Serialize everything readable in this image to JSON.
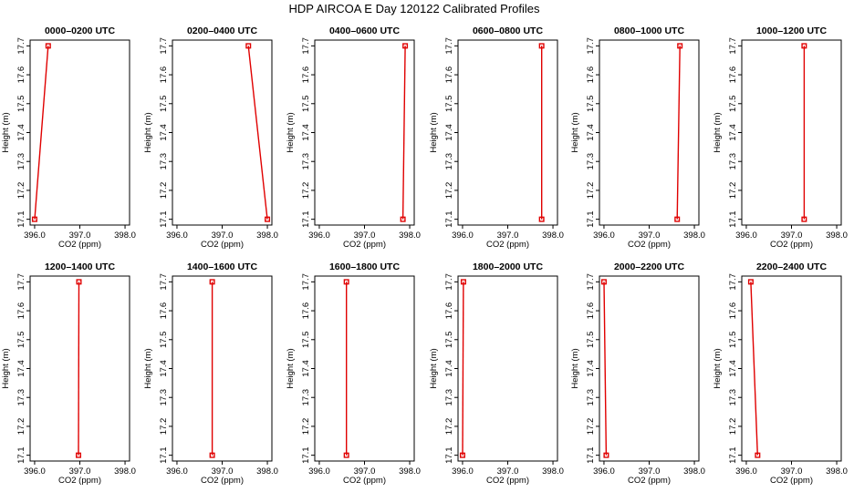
{
  "figure": {
    "title": "HDP AIRCOA E  Day 120122  Calibrated Profiles"
  },
  "axes": {
    "xlabel": "CO2 (ppm)",
    "ylabel": "Height (m)",
    "xticks": [
      "396.0",
      "397.0",
      "398.0"
    ],
    "yticks": [
      "17.1",
      "17.2",
      "17.3",
      "17.4",
      "17.5",
      "17.6",
      "17.7"
    ]
  },
  "colors": {
    "series": "#e00000",
    "axis": "#000000"
  },
  "chart_data": [
    {
      "type": "line",
      "title": "0000–0200 UTC",
      "xlabel": "CO2 (ppm)",
      "ylabel": "Height (m)",
      "xlim": [
        395.9,
        398.1
      ],
      "ylim": [
        17.08,
        17.72
      ],
      "points": [
        {
          "x": 396.3,
          "y": 17.7
        },
        {
          "x": 396.0,
          "y": 17.1
        }
      ]
    },
    {
      "type": "line",
      "title": "0200–0400 UTC",
      "xlabel": "CO2 (ppm)",
      "ylabel": "Height (m)",
      "xlim": [
        395.9,
        398.1
      ],
      "ylim": [
        17.08,
        17.72
      ],
      "points": [
        {
          "x": 397.58,
          "y": 17.7
        },
        {
          "x": 398.0,
          "y": 17.1
        }
      ]
    },
    {
      "type": "line",
      "title": "0400–0600 UTC",
      "xlabel": "CO2 (ppm)",
      "ylabel": "Height (m)",
      "xlim": [
        395.9,
        398.1
      ],
      "ylim": [
        17.08,
        17.72
      ],
      "points": [
        {
          "x": 397.9,
          "y": 17.7
        },
        {
          "x": 397.85,
          "y": 17.1
        }
      ]
    },
    {
      "type": "line",
      "title": "0600–0800 UTC",
      "xlabel": "CO2 (ppm)",
      "ylabel": "Height (m)",
      "xlim": [
        395.9,
        398.1
      ],
      "ylim": [
        17.08,
        17.72
      ],
      "points": [
        {
          "x": 397.75,
          "y": 17.7
        },
        {
          "x": 397.75,
          "y": 17.1
        }
      ]
    },
    {
      "type": "line",
      "title": "0800–1000 UTC",
      "xlabel": "CO2 (ppm)",
      "ylabel": "Height (m)",
      "xlim": [
        395.9,
        398.1
      ],
      "ylim": [
        17.08,
        17.72
      ],
      "points": [
        {
          "x": 397.68,
          "y": 17.7
        },
        {
          "x": 397.62,
          "y": 17.1
        }
      ]
    },
    {
      "type": "line",
      "title": "1000–1200 UTC",
      "xlabel": "CO2 (ppm)",
      "ylabel": "Height (m)",
      "xlim": [
        395.9,
        398.1
      ],
      "ylim": [
        17.08,
        17.72
      ],
      "points": [
        {
          "x": 397.28,
          "y": 17.7
        },
        {
          "x": 397.28,
          "y": 17.1
        }
      ]
    },
    {
      "type": "line",
      "title": "1200–1400 UTC",
      "xlabel": "CO2 (ppm)",
      "ylabel": "Height (m)",
      "xlim": [
        395.9,
        398.1
      ],
      "ylim": [
        17.08,
        17.72
      ],
      "points": [
        {
          "x": 396.98,
          "y": 17.7
        },
        {
          "x": 396.97,
          "y": 17.1
        }
      ]
    },
    {
      "type": "line",
      "title": "1400–1600 UTC",
      "xlabel": "CO2 (ppm)",
      "ylabel": "Height (m)",
      "xlim": [
        395.9,
        398.1
      ],
      "ylim": [
        17.08,
        17.72
      ],
      "points": [
        {
          "x": 396.78,
          "y": 17.7
        },
        {
          "x": 396.78,
          "y": 17.1
        }
      ]
    },
    {
      "type": "line",
      "title": "1600–1800 UTC",
      "xlabel": "CO2 (ppm)",
      "ylabel": "Height (m)",
      "xlim": [
        395.9,
        398.1
      ],
      "ylim": [
        17.08,
        17.72
      ],
      "points": [
        {
          "x": 396.6,
          "y": 17.7
        },
        {
          "x": 396.6,
          "y": 17.1
        }
      ]
    },
    {
      "type": "line",
      "title": "1800–2000 UTC",
      "xlabel": "CO2 (ppm)",
      "ylabel": "Height (m)",
      "xlim": [
        395.9,
        398.1
      ],
      "ylim": [
        17.08,
        17.72
      ],
      "points": [
        {
          "x": 396.02,
          "y": 17.7
        },
        {
          "x": 396.0,
          "y": 17.1
        }
      ]
    },
    {
      "type": "line",
      "title": "2000–2200 UTC",
      "xlabel": "CO2 (ppm)",
      "ylabel": "Height (m)",
      "xlim": [
        395.9,
        398.1
      ],
      "ylim": [
        17.08,
        17.72
      ],
      "points": [
        {
          "x": 396.0,
          "y": 17.7
        },
        {
          "x": 396.05,
          "y": 17.1
        }
      ]
    },
    {
      "type": "line",
      "title": "2200–2400 UTC",
      "xlabel": "CO2 (ppm)",
      "ylabel": "Height (m)",
      "xlim": [
        395.9,
        398.1
      ],
      "ylim": [
        17.08,
        17.72
      ],
      "points": [
        {
          "x": 396.1,
          "y": 17.7
        },
        {
          "x": 396.25,
          "y": 17.1
        }
      ]
    }
  ]
}
